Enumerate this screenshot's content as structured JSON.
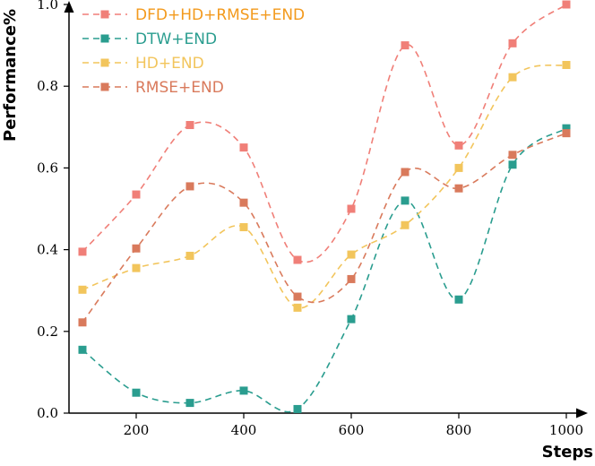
{
  "chart_data": {
    "type": "line",
    "title": "",
    "xlabel": "Steps",
    "ylabel": "Performance%",
    "x": [
      100,
      200,
      300,
      400,
      500,
      600,
      700,
      800,
      900,
      1000
    ],
    "xlim": [
      75,
      1010
    ],
    "ylim": [
      0.0,
      1.0
    ],
    "xticks": [
      200,
      400,
      600,
      800,
      1000
    ],
    "yticks": [
      0.0,
      0.2,
      0.4,
      0.6,
      0.8,
      1.0
    ],
    "ytick_labels": [
      "0.0",
      "0.2",
      "0.4",
      "0.6",
      "0.8",
      "1.0"
    ],
    "grid": false,
    "legend_position": "top-left",
    "series": [
      {
        "name": "DFD+HD+RMSE+END",
        "color": "#f07f78",
        "text_color": "#f39a1d",
        "values": [
          0.395,
          0.535,
          0.705,
          0.65,
          0.375,
          0.5,
          0.9,
          0.655,
          0.905,
          1.0
        ]
      },
      {
        "name": "DTW+END",
        "color": "#2a9d8f",
        "text_color": "#2a9d8f",
        "values": [
          0.155,
          0.05,
          0.025,
          0.055,
          0.01,
          0.23,
          0.52,
          0.278,
          0.608,
          0.697
        ]
      },
      {
        "name": "HD+END",
        "color": "#f2c55c",
        "text_color": "#f2c55c",
        "values": [
          0.302,
          0.355,
          0.385,
          0.455,
          0.258,
          0.388,
          0.46,
          0.6,
          0.822,
          0.852
        ]
      },
      {
        "name": "RMSE+END",
        "color": "#d97a5c",
        "text_color": "#d97a5c",
        "values": [
          0.222,
          0.403,
          0.555,
          0.515,
          0.285,
          0.328,
          0.59,
          0.55,
          0.632,
          0.685
        ]
      }
    ]
  }
}
